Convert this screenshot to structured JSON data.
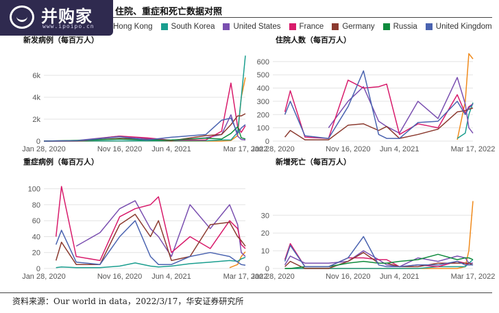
{
  "header": {
    "logo_text": "并购家",
    "logo_url": "www.ipoipo.cn",
    "title": "住院、重症和死亡数据对照"
  },
  "legend": [
    {
      "name": "Hong Kong",
      "color": "#f08a1c"
    },
    {
      "name": "South Korea",
      "color": "#1a9e8f"
    },
    {
      "name": "United States",
      "color": "#7a4fb0"
    },
    {
      "name": "France",
      "color": "#d81b6b"
    },
    {
      "name": "Germany",
      "color": "#8b3a2f"
    },
    {
      "name": "Russia",
      "color": "#0e8a3c"
    },
    {
      "name": "United Kingdom",
      "color": "#4a63b0"
    }
  ],
  "source": "资料来源：Our world in data，2022/3/17，华安证券研究所",
  "chart_data": [
    {
      "type": "line",
      "title": "新发病例（每百万人）",
      "x": [
        "2020-01-28",
        "2020-06-07",
        "2020-11-16",
        "2021-03-01",
        "2021-06-04",
        "2021-10-15",
        "2021-12-15",
        "2022-01-20",
        "2022-02-15",
        "2022-03-01",
        "2022-03-17"
      ],
      "xticks": [
        "Jan 28, 2020",
        "Nov 16, 2020",
        "Jun 4, 2021",
        "Mar 17, 2022"
      ],
      "yticks": [
        "0",
        "2k",
        "4k",
        "6k"
      ],
      "ylim": [
        0,
        8000
      ],
      "series": [
        {
          "name": "Hong Kong",
          "values": [
            0,
            0,
            5,
            5,
            0,
            0,
            0,
            50,
            500,
            4000,
            5800
          ]
        },
        {
          "name": "South Korea",
          "values": [
            0,
            5,
            10,
            10,
            10,
            30,
            100,
            100,
            800,
            4000,
            7800
          ]
        },
        {
          "name": "United States",
          "values": [
            0,
            60,
            450,
            220,
            40,
            300,
            600,
            2400,
            450,
            150,
            100
          ]
        },
        {
          "name": "France",
          "values": [
            0,
            20,
            450,
            300,
            80,
            100,
            900,
            5300,
            1300,
            800,
            1400
          ]
        },
        {
          "name": "Germany",
          "values": [
            0,
            5,
            250,
            150,
            30,
            500,
            600,
            1500,
            2300,
            2300,
            2500
          ]
        },
        {
          "name": "Russia",
          "values": [
            0,
            60,
            180,
            90,
            100,
            260,
            190,
            700,
            1300,
            300,
            200
          ]
        },
        {
          "name": "United Kingdom",
          "values": [
            0,
            30,
            400,
            100,
            350,
            600,
            1900,
            2100,
            700,
            1200,
            1500
          ]
        }
      ]
    },
    {
      "type": "line",
      "title": "住院人数（每百万人）",
      "x": [
        "2020-03-15",
        "2020-04-05",
        "2020-06-01",
        "2020-09-01",
        "2020-11-16",
        "2021-01-15",
        "2021-03-15",
        "2021-04-15",
        "2021-06-04",
        "2021-08-15",
        "2021-11-01",
        "2022-01-15",
        "2022-02-15",
        "2022-03-01",
        "2022-03-17"
      ],
      "xticks": [
        "Jan 28, 2020",
        "Nov 16, 2020",
        "Jun 4, 2021",
        "Mar 17, 2022"
      ],
      "yticks": [
        "0",
        "100",
        "200",
        "300",
        "400",
        "500",
        "600"
      ],
      "ylim": [
        0,
        620
      ],
      "series": [
        {
          "name": "Hong Kong",
          "values": [
            null,
            null,
            null,
            null,
            null,
            null,
            null,
            null,
            null,
            null,
            null,
            10,
            300,
            660,
            620
          ]
        },
        {
          "name": "South Korea",
          "values": [
            null,
            null,
            null,
            null,
            null,
            null,
            null,
            null,
            null,
            null,
            null,
            20,
            60,
            200,
            290
          ]
        },
        {
          "name": "United States",
          "values": [
            null,
            null,
            null,
            100,
            300,
            410,
            150,
            110,
            60,
            300,
            170,
            480,
            280,
            100,
            60
          ]
        },
        {
          "name": "France",
          "values": [
            220,
            380,
            30,
            20,
            460,
            400,
            410,
            430,
            50,
            130,
            100,
            350,
            210,
            260,
            280
          ]
        },
        {
          "name": "Germany",
          "values": [
            30,
            80,
            10,
            10,
            120,
            130,
            80,
            110,
            20,
            50,
            90,
            220,
            230,
            240,
            250
          ]
        },
        {
          "name": "Russia",
          "values": [
            null,
            null,
            null,
            null,
            null,
            null,
            null,
            null,
            null,
            null,
            null,
            null,
            null,
            null,
            null
          ]
        },
        {
          "name": "United Kingdom",
          "values": [
            200,
            300,
            40,
            20,
            260,
            530,
            50,
            20,
            20,
            140,
            150,
            300,
            200,
            250,
            280
          ]
        }
      ]
    },
    {
      "type": "line",
      "title": "重症病例（每百万人）",
      "x": [
        "2020-03-15",
        "2020-04-05",
        "2020-06-01",
        "2020-09-01",
        "2020-11-16",
        "2021-01-15",
        "2021-03-15",
        "2021-04-15",
        "2021-06-04",
        "2021-08-15",
        "2021-11-01",
        "2022-01-15",
        "2022-02-15",
        "2022-03-01",
        "2022-03-17"
      ],
      "xticks": [
        "Jan 28, 2020",
        "Nov 16, 2020",
        "Jun 4, 2021",
        "Mar 17, 2022"
      ],
      "yticks": [
        "0",
        "20",
        "40",
        "60",
        "80",
        "100"
      ],
      "ylim": [
        0,
        104
      ],
      "series": [
        {
          "name": "Hong Kong",
          "values": [
            null,
            null,
            null,
            null,
            null,
            null,
            null,
            null,
            null,
            null,
            null,
            1,
            5,
            15,
            21
          ]
        },
        {
          "name": "South Korea",
          "values": [
            1,
            2,
            1,
            1,
            3,
            7,
            3,
            2,
            3,
            6,
            8,
            10,
            9,
            12,
            14
          ]
        },
        {
          "name": "United States",
          "values": [
            null,
            null,
            28,
            45,
            75,
            85,
            50,
            40,
            15,
            80,
            50,
            80,
            55,
            20,
            15
          ]
        },
        {
          "name": "France",
          "values": [
            40,
            103,
            15,
            10,
            65,
            75,
            80,
            90,
            20,
            40,
            25,
            60,
            50,
            30,
            25
          ]
        },
        {
          "name": "Germany",
          "values": [
            10,
            33,
            5,
            5,
            55,
            68,
            40,
            60,
            10,
            15,
            55,
            58,
            40,
            35,
            28
          ]
        },
        {
          "name": "Russia",
          "values": [
            null,
            null,
            null,
            null,
            null,
            null,
            null,
            null,
            null,
            null,
            null,
            null,
            null,
            null,
            null
          ]
        },
        {
          "name": "United Kingdom",
          "values": [
            30,
            48,
            8,
            5,
            40,
            60,
            15,
            5,
            5,
            15,
            20,
            15,
            8,
            5,
            4
          ]
        }
      ]
    },
    {
      "type": "line",
      "title": "新增死亡（每百万人）",
      "x": [
        "2020-03-15",
        "2020-04-05",
        "2020-06-01",
        "2020-09-01",
        "2020-11-16",
        "2021-01-15",
        "2021-03-15",
        "2021-04-15",
        "2021-06-04",
        "2021-08-15",
        "2021-11-01",
        "2022-01-15",
        "2022-02-15",
        "2022-03-01",
        "2022-03-17"
      ],
      "xticks": [
        "Jan 28, 2020",
        "Nov 16, 2020",
        "Jun 4, 2021",
        "Mar 17, 2022"
      ],
      "yticks": [
        "0",
        "10",
        "20",
        "30"
      ],
      "ylim": [
        0,
        39
      ],
      "series": [
        {
          "name": "Hong Kong",
          "values": [
            0,
            0,
            0,
            0,
            0,
            0,
            0,
            0,
            0,
            0,
            0,
            0,
            1,
            10,
            38
          ]
        },
        {
          "name": "South Korea",
          "values": [
            0,
            0,
            0,
            0,
            0,
            0,
            0,
            0,
            0,
            0,
            1,
            1,
            1,
            3,
            5
          ]
        },
        {
          "name": "United States",
          "values": [
            2,
            7,
            3,
            3,
            4,
            10,
            5,
            2,
            1,
            6,
            4,
            7,
            6,
            3,
            3
          ]
        },
        {
          "name": "France",
          "values": [
            5,
            14,
            1,
            1,
            6,
            6,
            5,
            5,
            1,
            2,
            1,
            4,
            3,
            2,
            2
          ]
        },
        {
          "name": "Germany",
          "values": [
            1,
            4,
            0,
            0,
            4,
            9,
            3,
            3,
            1,
            1,
            3,
            3,
            3,
            3,
            2
          ]
        },
        {
          "name": "Russia",
          "values": [
            0,
            0,
            1,
            1,
            3,
            4,
            3,
            3,
            4,
            5,
            8,
            5,
            6,
            6,
            5
          ]
        },
        {
          "name": "United Kingdom",
          "values": [
            4,
            13,
            1,
            1,
            6,
            18,
            2,
            1,
            1,
            2,
            2,
            4,
            2,
            2,
            2
          ]
        }
      ]
    }
  ]
}
